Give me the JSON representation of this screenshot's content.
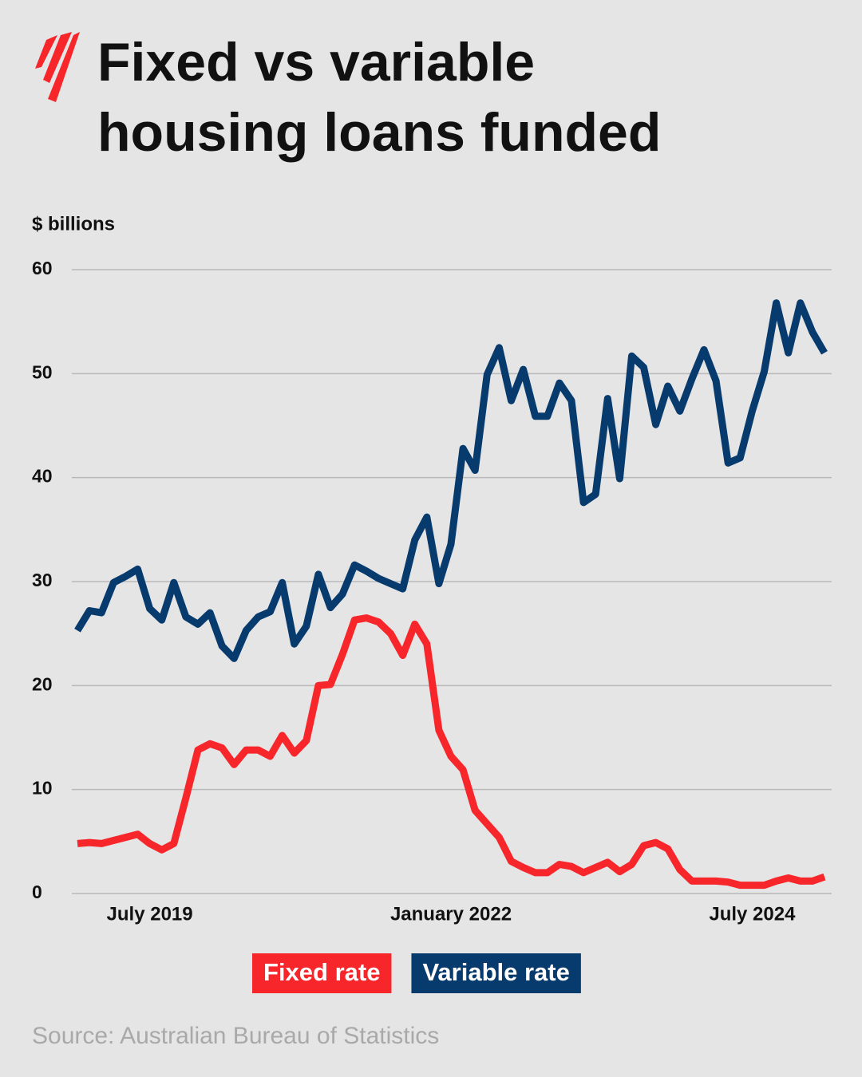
{
  "chart_data": {
    "type": "line",
    "title": "Fixed vs variable housing loans funded",
    "y_label": "$ billions",
    "source": "Source: Australian Bureau of Statistics",
    "categories": [
      null,
      null,
      null,
      null,
      null,
      null,
      "July 2019",
      null,
      null,
      null,
      null,
      null,
      null,
      null,
      null,
      null,
      null,
      null,
      null,
      null,
      null,
      null,
      null,
      null,
      null,
      null,
      null,
      null,
      null,
      null,
      null,
      "January 2022",
      null,
      null,
      null,
      null,
      null,
      null,
      null,
      null,
      null,
      null,
      null,
      null,
      null,
      null,
      null,
      null,
      null,
      null,
      null,
      null,
      null,
      null,
      null,
      null,
      "July 2024",
      null,
      null,
      null,
      null,
      null,
      null
    ],
    "series": [
      {
        "name": "Fixed rate",
        "color": "#f7262b",
        "values": [
          4.8,
          4.9,
          4.8,
          5.1,
          5.4,
          5.7,
          4.8,
          4.2,
          4.8,
          9.2,
          13.8,
          14.4,
          14.0,
          12.4,
          13.8,
          13.8,
          13.2,
          15.2,
          13.5,
          14.7,
          20.0,
          20.1,
          23.0,
          26.3,
          26.5,
          26.1,
          25.0,
          22.9,
          25.9,
          24.0,
          15.7,
          13.2,
          11.9,
          8.0,
          6.7,
          5.4,
          3.1,
          2.5,
          2.0,
          2.0,
          2.8,
          2.6,
          2.0,
          2.5,
          3.0,
          2.1,
          2.8,
          4.6,
          4.9,
          4.3,
          2.3,
          1.2,
          1.2,
          1.2,
          1.1,
          0.8,
          0.8,
          0.8,
          1.2,
          1.5,
          1.2,
          1.2,
          1.6
        ]
      },
      {
        "name": "Variable rate",
        "color": "#073a6d",
        "values": [
          25.3,
          27.2,
          27.0,
          29.9,
          30.5,
          31.2,
          27.4,
          26.3,
          29.9,
          26.6,
          25.9,
          27.0,
          23.8,
          22.6,
          25.3,
          26.6,
          27.1,
          29.9,
          24.0,
          25.7,
          30.7,
          27.5,
          28.8,
          31.6,
          31.0,
          30.3,
          29.8,
          29.3,
          34.0,
          36.2,
          29.8,
          33.6,
          42.8,
          40.7,
          49.9,
          52.5,
          47.4,
          50.4,
          45.9,
          45.9,
          49.1,
          47.4,
          37.6,
          38.4,
          47.6,
          39.9,
          51.7,
          50.6,
          45.1,
          48.8,
          46.4,
          49.5,
          52.3,
          49.3,
          41.4,
          41.9,
          46.4,
          50.2,
          56.8,
          52.0,
          56.8,
          54.0,
          52.0
        ]
      }
    ],
    "ylim": [
      0,
      60
    ],
    "yticks": [
      0,
      10,
      20,
      30,
      40,
      50,
      60
    ],
    "grid": true
  }
}
